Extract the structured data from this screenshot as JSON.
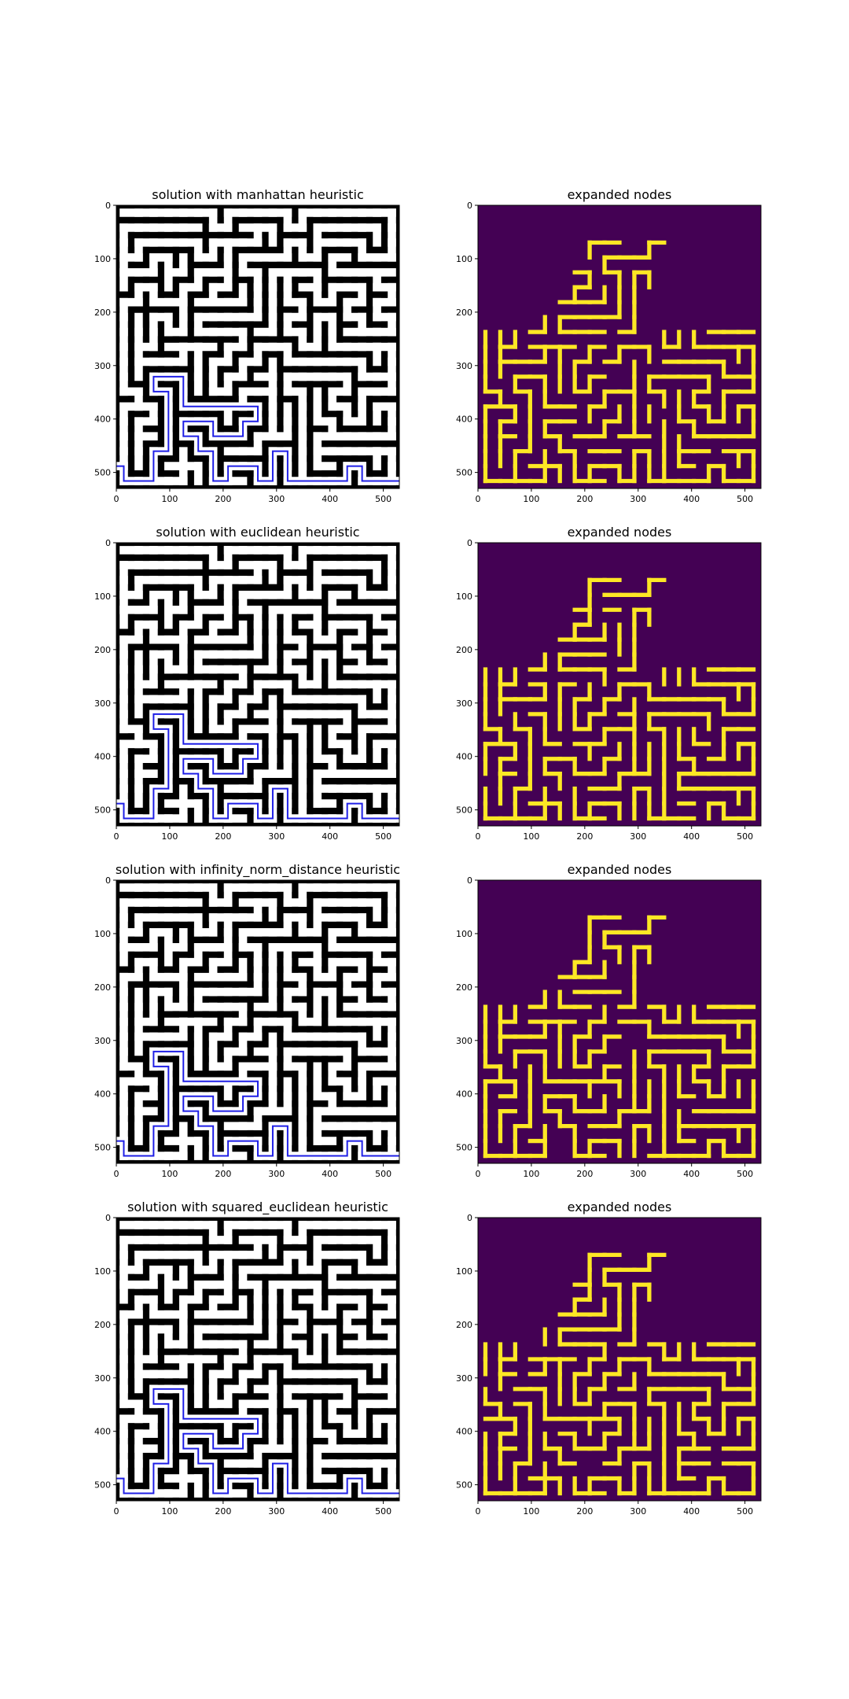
{
  "figure": {
    "background": "#ffffff"
  },
  "colors": {
    "maze_wall": "#000000",
    "maze_floor": "#ffffff",
    "solution_path": "#1f1fe6",
    "expanded_background": "#440154",
    "expanded_nodes": "#fde725"
  },
  "chart_data": [
    {
      "type": "heatmap",
      "kind": "maze-solution",
      "title": "solution with manhattan heuristic",
      "xlim": [
        0,
        530
      ],
      "ylim": [
        530,
        0
      ],
      "x_ticks": [
        0,
        100,
        200,
        300,
        400,
        500
      ],
      "y_ticks": [
        0,
        100,
        200,
        300,
        400,
        500
      ],
      "xlabel": "",
      "ylabel": "",
      "grid": false,
      "cmap": "gray"
    },
    {
      "type": "heatmap",
      "kind": "expanded-nodes",
      "title": "expanded nodes",
      "xlim": [
        0,
        530
      ],
      "ylim": [
        530,
        0
      ],
      "x_ticks": [
        0,
        100,
        200,
        300,
        400,
        500
      ],
      "y_ticks": [
        0,
        100,
        200,
        300,
        400,
        500
      ],
      "xlabel": "",
      "ylabel": "",
      "grid": false,
      "cmap": "viridis"
    },
    {
      "type": "heatmap",
      "kind": "maze-solution",
      "title": "solution with euclidean heuristic",
      "xlim": [
        0,
        530
      ],
      "ylim": [
        530,
        0
      ],
      "x_ticks": [
        0,
        100,
        200,
        300,
        400,
        500
      ],
      "y_ticks": [
        0,
        100,
        200,
        300,
        400,
        500
      ],
      "xlabel": "",
      "ylabel": "",
      "grid": false,
      "cmap": "gray"
    },
    {
      "type": "heatmap",
      "kind": "expanded-nodes",
      "title": "expanded nodes",
      "xlim": [
        0,
        530
      ],
      "ylim": [
        530,
        0
      ],
      "x_ticks": [
        0,
        100,
        200,
        300,
        400,
        500
      ],
      "y_ticks": [
        0,
        100,
        200,
        300,
        400,
        500
      ],
      "xlabel": "",
      "ylabel": "",
      "grid": false,
      "cmap": "viridis"
    },
    {
      "type": "heatmap",
      "kind": "maze-solution",
      "title": "solution with infinity_norm_distance heuristic",
      "xlim": [
        0,
        530
      ],
      "ylim": [
        530,
        0
      ],
      "x_ticks": [
        0,
        100,
        200,
        300,
        400,
        500
      ],
      "y_ticks": [
        0,
        100,
        200,
        300,
        400,
        500
      ],
      "xlabel": "",
      "ylabel": "",
      "grid": false,
      "cmap": "gray"
    },
    {
      "type": "heatmap",
      "kind": "expanded-nodes",
      "title": "expanded nodes",
      "xlim": [
        0,
        530
      ],
      "ylim": [
        530,
        0
      ],
      "x_ticks": [
        0,
        100,
        200,
        300,
        400,
        500
      ],
      "y_ticks": [
        0,
        100,
        200,
        300,
        400,
        500
      ],
      "xlabel": "",
      "ylabel": "",
      "grid": false,
      "cmap": "viridis"
    },
    {
      "type": "heatmap",
      "kind": "maze-solution",
      "title": "solution with squared_euclidean heuristic",
      "xlim": [
        0,
        530
      ],
      "ylim": [
        530,
        0
      ],
      "x_ticks": [
        0,
        100,
        200,
        300,
        400,
        500
      ],
      "y_ticks": [
        0,
        100,
        200,
        300,
        400,
        500
      ],
      "xlabel": "",
      "ylabel": "",
      "grid": false,
      "cmap": "gray"
    },
    {
      "type": "heatmap",
      "kind": "expanded-nodes",
      "title": "expanded nodes",
      "xlim": [
        0,
        530
      ],
      "ylim": [
        530,
        0
      ],
      "x_ticks": [
        0,
        100,
        200,
        300,
        400,
        500
      ],
      "y_ticks": [
        0,
        100,
        200,
        300,
        400,
        500
      ],
      "xlabel": "",
      "ylabel": "",
      "grid": false,
      "cmap": "viridis"
    }
  ]
}
